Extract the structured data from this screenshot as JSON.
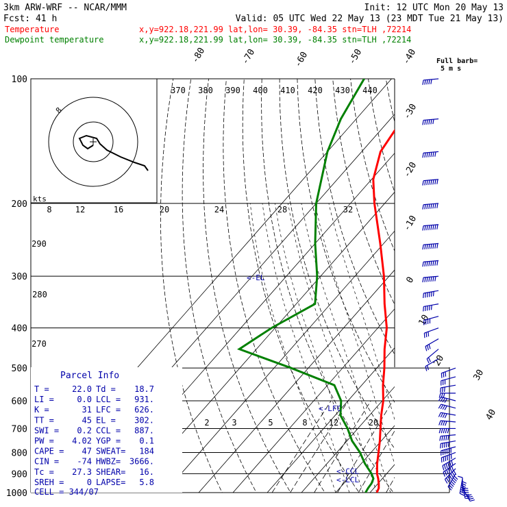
{
  "header": {
    "model": "3km ARW-WRF -- NCAR/MMM",
    "init": "Init: 12 UTC Mon 20 May 13",
    "fcst": "Fcst:   41 h",
    "valid": "Valid: 05 UTC Wed 22 May 13 (23 MDT Tue 21 May 13)",
    "series_lines": [
      {
        "label": "Temperature",
        "info": "x,y=922.18,221.99   lat,lon= 30.39, -84.35   stn=TLH ,72214",
        "color": "#ff0000"
      },
      {
        "label": "Dewpoint temperature",
        "info": "x,y=922.18,221.99   lat,lon= 30.39, -84.35   stn=TLH ,72214",
        "color": "#008000"
      }
    ]
  },
  "chart_data": {
    "type": "line",
    "pressure_axis": {
      "scale": "log",
      "ylim": [
        1000,
        100
      ],
      "ticks": [
        100,
        200,
        300,
        400,
        500,
        600,
        700,
        800,
        900,
        1000
      ]
    },
    "isotherms": [
      -80,
      -70,
      -60,
      -50,
      -40,
      -30,
      -20,
      -10,
      0,
      10,
      20,
      30,
      40
    ],
    "theta_labels": [
      370,
      380,
      390,
      400,
      410,
      420,
      430,
      440
    ],
    "theta_side_labels": [
      290,
      280,
      270
    ],
    "mixing_ratio_labels": [
      "2",
      "3",
      "5",
      "8",
      "12",
      "20"
    ],
    "series": [
      {
        "name": "Temperature",
        "color": "#ff0000",
        "points": [
          [
            1000,
            22.0
          ],
          [
            975,
            21.4
          ],
          [
            950,
            20.2
          ],
          [
            925,
            18.8
          ],
          [
            900,
            17.2
          ],
          [
            850,
            14.6
          ],
          [
            800,
            12.2
          ],
          [
            750,
            9.6
          ],
          [
            700,
            6.6
          ],
          [
            650,
            3.4
          ],
          [
            600,
            0.3
          ],
          [
            550,
            -3.8
          ],
          [
            500,
            -7.8
          ],
          [
            450,
            -12.6
          ],
          [
            400,
            -17.4
          ],
          [
            350,
            -24.2
          ],
          [
            300,
            -31.5
          ],
          [
            250,
            -41.0
          ],
          [
            200,
            -53.0
          ],
          [
            175,
            -59.5
          ],
          [
            150,
            -64.5
          ],
          [
            125,
            -66.5
          ],
          [
            100,
            -66.0
          ]
        ]
      },
      {
        "name": "Dewpoint temperature",
        "color": "#008000",
        "points": [
          [
            1000,
            18.7
          ],
          [
            975,
            18.3
          ],
          [
            950,
            18.1
          ],
          [
            925,
            17.4
          ],
          [
            900,
            15.6
          ],
          [
            850,
            11.0
          ],
          [
            800,
            6.8
          ],
          [
            750,
            1.5
          ],
          [
            700,
            -3.0
          ],
          [
            650,
            -8.5
          ],
          [
            600,
            -12.0
          ],
          [
            550,
            -18.0
          ],
          [
            500,
            -35.0
          ],
          [
            450,
            -55.0
          ],
          [
            400,
            -51.0
          ],
          [
            350,
            -44.5
          ],
          [
            300,
            -51.0
          ],
          [
            250,
            -60.0
          ],
          [
            200,
            -70.0
          ],
          [
            150,
            -80.0
          ],
          [
            125,
            -84.5
          ],
          [
            100,
            -88.0
          ]
        ]
      }
    ],
    "levels": [
      {
        "label": "<-EL",
        "p": 302
      },
      {
        "label": "<-LFC",
        "p": 626
      },
      {
        "label": "<-CCL",
        "p": 887
      },
      {
        "label": "<-LCL",
        "p": 931
      }
    ],
    "wind_barbs": {
      "title": "Full barb=",
      "unit": "5 m s",
      "barbs": [
        [
          1000,
          0,
          1
        ],
        [
          975,
          150,
          4
        ],
        [
          950,
          170,
          6
        ],
        [
          925,
          190,
          7
        ],
        [
          900,
          210,
          7
        ],
        [
          875,
          225,
          7
        ],
        [
          850,
          235,
          6
        ],
        [
          825,
          240,
          6
        ],
        [
          800,
          250,
          6
        ],
        [
          775,
          255,
          6
        ],
        [
          750,
          260,
          5
        ],
        [
          725,
          265,
          5
        ],
        [
          700,
          270,
          5
        ],
        [
          675,
          275,
          4
        ],
        [
          650,
          280,
          4
        ],
        [
          625,
          285,
          4
        ],
        [
          600,
          285,
          4
        ],
        [
          575,
          270,
          3
        ],
        [
          550,
          260,
          3
        ],
        [
          525,
          255,
          3
        ],
        [
          500,
          250,
          3
        ],
        [
          475,
          240,
          2
        ],
        [
          450,
          230,
          2
        ],
        [
          425,
          240,
          3
        ],
        [
          400,
          250,
          3
        ],
        [
          375,
          255,
          4
        ],
        [
          350,
          260,
          5
        ],
        [
          325,
          260,
          6
        ],
        [
          300,
          265,
          7
        ],
        [
          275,
          265,
          8
        ],
        [
          250,
          265,
          8
        ],
        [
          225,
          265,
          9
        ],
        [
          200,
          265,
          9
        ],
        [
          175,
          265,
          8
        ],
        [
          150,
          265,
          7
        ],
        [
          125,
          265,
          6
        ],
        [
          100,
          265,
          5
        ]
      ]
    },
    "hodograph": {
      "units": "kts",
      "ring_labels": [
        "8",
        "12",
        "16",
        "20",
        "24",
        "28",
        "32"
      ],
      "ring_note": "8",
      "trace": [
        [
          0,
          -5
        ],
        [
          -8,
          -10
        ],
        [
          -15,
          -5
        ],
        [
          -20,
          5
        ],
        [
          -10,
          9
        ],
        [
          5,
          5
        ],
        [
          10,
          -3
        ],
        [
          20,
          -12
        ],
        [
          40,
          -22
        ],
        [
          60,
          -30
        ],
        [
          75,
          -35
        ],
        [
          80,
          -42
        ]
      ]
    },
    "parcel_info": {
      "title": "Parcel Info",
      "rows": [
        [
          "T  =",
          "22.0",
          "Td =",
          "18.7"
        ],
        [
          "LI =",
          "0.0",
          "LCL =",
          "931."
        ],
        [
          "K  =",
          "31",
          "LFC =",
          "626."
        ],
        [
          "TT =",
          "45",
          "EL =",
          "302."
        ],
        [
          "SWI =",
          "0.2",
          "CCL =",
          "887."
        ],
        [
          "PW =",
          "4.02",
          "YGP =",
          "0.1"
        ],
        [
          "CAPE =",
          "47",
          "SWEAT=",
          "184"
        ],
        [
          "CIN =",
          "-74",
          "HWBZ=",
          "3666."
        ],
        [
          "Tc =",
          "27.3",
          "SHEAR=",
          "16."
        ],
        [
          "SREH =",
          "0",
          "LAPSE=",
          "5.8"
        ]
      ],
      "cell": "CELL = 344/07"
    }
  }
}
